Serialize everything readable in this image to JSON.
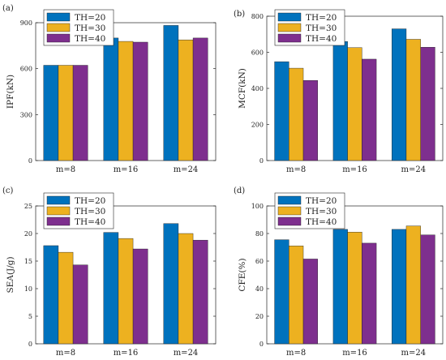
{
  "figure": {
    "legend_labels": [
      "TH=20",
      "TH=30",
      "TH=40"
    ],
    "colors": [
      "#0072BD",
      "#EDB120",
      "#7E2F8E"
    ]
  },
  "chart_data": [
    {
      "panel": "(a)",
      "type": "bar",
      "categories": [
        "m=8",
        "m=16",
        "m=24"
      ],
      "ylabel": "IPF(kN)",
      "ylim": [
        0,
        900
      ],
      "yticks": [
        0,
        300,
        600,
        900
      ],
      "legend": "top-left",
      "series": [
        {
          "name": "TH=20",
          "values": [
            622,
            800,
            882
          ]
        },
        {
          "name": "TH=30",
          "values": [
            622,
            778,
            788
          ]
        },
        {
          "name": "TH=40",
          "values": [
            622,
            773,
            800
          ]
        }
      ]
    },
    {
      "panel": "(b)",
      "type": "bar",
      "categories": [
        "m=8",
        "m=16",
        "m=24"
      ],
      "ylabel": "MCF(kN)",
      "ylim": [
        0,
        800
      ],
      "yticks": [
        0,
        200,
        400,
        600,
        800
      ],
      "legend": "top-left",
      "series": [
        {
          "name": "TH=20",
          "values": [
            548,
            660,
            730
          ]
        },
        {
          "name": "TH=30",
          "values": [
            512,
            626,
            672
          ]
        },
        {
          "name": "TH=40",
          "values": [
            444,
            562,
            628
          ]
        }
      ]
    },
    {
      "panel": "(c)",
      "type": "bar",
      "categories": [
        "m=8",
        "m=16",
        "m=24"
      ],
      "ylabel": "SEA(J/g)",
      "ylim": [
        0,
        25
      ],
      "yticks": [
        0,
        5,
        10,
        15,
        20,
        25
      ],
      "legend": "top-left",
      "series": [
        {
          "name": "TH=20",
          "values": [
            17.8,
            20.2,
            21.8
          ]
        },
        {
          "name": "TH=30",
          "values": [
            16.6,
            19.1,
            20.0
          ]
        },
        {
          "name": "TH=40",
          "values": [
            14.3,
            17.2,
            18.8
          ]
        }
      ]
    },
    {
      "panel": "(d)",
      "type": "bar",
      "categories": [
        "m=8",
        "m=16",
        "m=24"
      ],
      "ylabel": "CFE(%)",
      "ylim": [
        0,
        100
      ],
      "yticks": [
        0,
        20,
        40,
        60,
        80,
        100
      ],
      "legend": "top-left",
      "series": [
        {
          "name": "TH=20",
          "values": [
            75.5,
            83.0,
            83.0
          ]
        },
        {
          "name": "TH=30",
          "values": [
            71.0,
            81.0,
            85.5
          ]
        },
        {
          "name": "TH=40",
          "values": [
            61.5,
            73.0,
            79.0
          ]
        }
      ]
    }
  ]
}
